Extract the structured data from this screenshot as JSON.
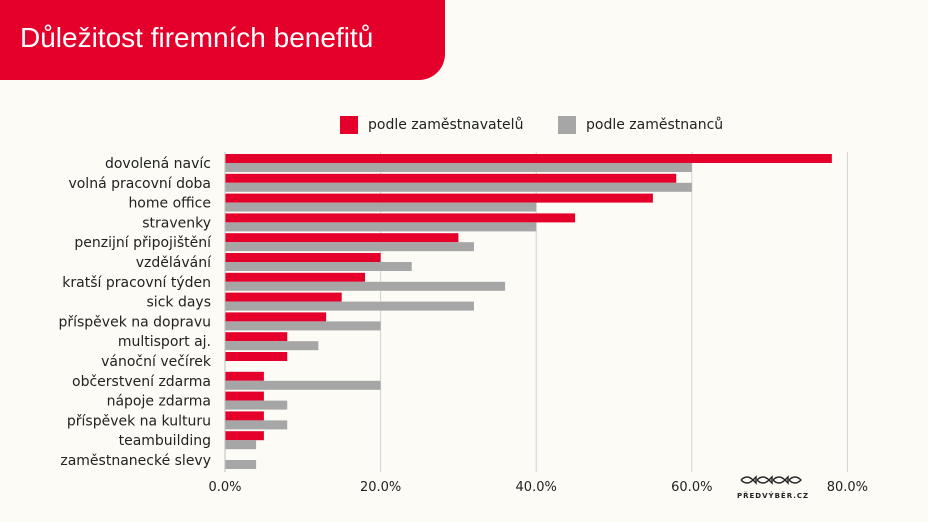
{
  "title": "Důležitost firemních benefitů",
  "logo": {
    "text": "PŘEDVÝBĚR.CZ",
    "icon": "fish-icons"
  },
  "colors": {
    "employer": "#e4002b",
    "employee": "#a6a6a6",
    "grid": "#d2d2d2",
    "title_bg": "#e4002b"
  },
  "chart_data": {
    "type": "bar",
    "orientation": "horizontal",
    "categories": [
      "dovolená navíc",
      "volná pracovní doba",
      "home office",
      "stravenky",
      "penzijní připojištění",
      "vzdělávání",
      "kratší pracovní týden",
      "sick days",
      "příspěvek na dopravu",
      "multisport aj.",
      "vánoční večírek",
      "občerstvení zdarma",
      "nápoje zdarma",
      "příspěvek na kulturu",
      "teambuilding",
      "zaměstnanecké slevy"
    ],
    "series": [
      {
        "name": "podle zaměstnavatelů",
        "color": "#e4002b",
        "values": [
          78,
          58,
          55,
          45,
          30,
          20,
          18,
          15,
          13,
          8,
          8,
          5,
          5,
          5,
          5,
          0
        ]
      },
      {
        "name": "podle zaměstnanců",
        "color": "#a6a6a6",
        "values": [
          60,
          60,
          40,
          40,
          32,
          24,
          36,
          32,
          20,
          12,
          0,
          20,
          8,
          8,
          4,
          4
        ]
      }
    ],
    "xlim": [
      0,
      80
    ],
    "xticks": [
      "0.0%",
      "20.0%",
      "40.0%",
      "60.0%",
      "80.0%"
    ],
    "grid": true,
    "legend_position": "top"
  }
}
